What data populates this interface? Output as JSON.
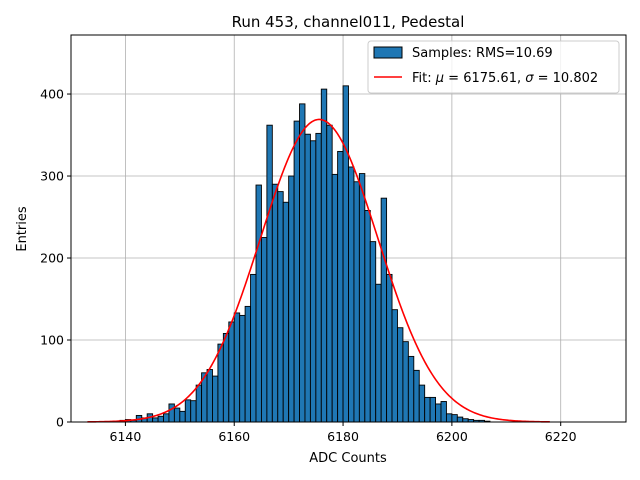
{
  "chart_data": {
    "type": "bar",
    "title": "Run 453, channel011, Pedestal",
    "xlabel": "ADC Counts",
    "ylabel": "Entries",
    "xlim": [
      6130,
      6232
    ],
    "ylim": [
      0,
      472
    ],
    "xticks": [
      6140,
      6160,
      6180,
      6200,
      6220
    ],
    "yticks": [
      0,
      100,
      200,
      300,
      400
    ],
    "grid": true,
    "legend_position": "top-right",
    "histogram": {
      "name": "Samples: RMS=10.69",
      "color": "#1f77b4",
      "bin_start": 6139,
      "bin_width": 1,
      "counts": [
        2,
        3,
        2,
        8,
        5,
        10,
        5,
        7,
        10,
        22,
        17,
        13,
        27,
        26,
        45,
        60,
        64,
        56,
        95,
        108,
        122,
        133,
        130,
        141,
        180,
        289,
        225,
        362,
        290,
        281,
        268,
        300,
        367,
        388,
        351,
        343,
        352,
        406,
        362,
        302,
        330,
        410,
        311,
        293,
        303,
        258,
        220,
        168,
        273,
        180,
        137,
        115,
        98,
        80,
        63,
        45,
        30,
        30,
        22,
        25,
        10,
        9,
        6,
        4,
        3,
        2,
        2,
        1
      ]
    },
    "fit": {
      "name": "Fit: μ = 6175.61, σ = 10.802",
      "name_parts": [
        "Fit: ",
        "μ",
        " = 6175.61, ",
        "σ",
        " = 10.802"
      ],
      "color": "#ff0000",
      "type": "gaussian",
      "mu": 6175.61,
      "sigma": 10.802,
      "amplitude": 369,
      "x_range": [
        6133,
        6218
      ]
    }
  }
}
